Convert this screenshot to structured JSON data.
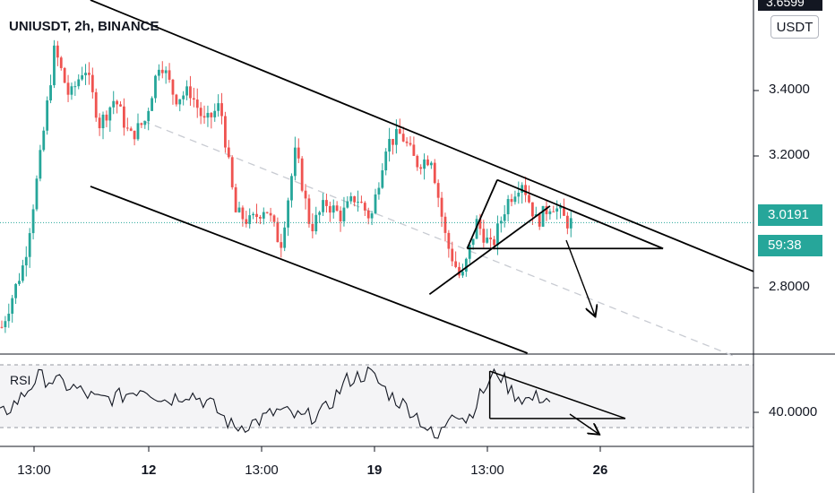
{
  "header": {
    "title": "UNIUSDT, 2h, BINANCE",
    "currency": "USDT"
  },
  "colors": {
    "up": "#26a69a",
    "down": "#ef5350",
    "price_line": "#26a69a",
    "trendline": "#000000",
    "ma_dashed": "#c8cbd2",
    "rsi_line": "#131722",
    "rsi_band_bg": "#f4f4f6"
  },
  "price_axis": {
    "ticks": [
      "3.4000",
      "3.2000",
      "2.8000"
    ],
    "top_cut_label": "3.6599",
    "last_price": "3.0191",
    "countdown": "59:38"
  },
  "rsi_panel": {
    "label": "RSI",
    "axis_label": "40.0000"
  },
  "time_axis": {
    "labels": [
      {
        "text": "13:00",
        "bold": false
      },
      {
        "text": "12",
        "bold": true
      },
      {
        "text": "13:00",
        "bold": false
      },
      {
        "text": "19",
        "bold": true
      },
      {
        "text": "13:00",
        "bold": false
      },
      {
        "text": "26",
        "bold": true
      }
    ]
  },
  "chart_data": {
    "type": "candlestick",
    "symbol": "UNIUSDT",
    "interval": "2h",
    "exchange": "BINANCE",
    "ylim": [
      2.62,
      3.7
    ],
    "yticks": [
      3.4,
      3.2,
      2.8
    ],
    "last_price": 3.0191,
    "price_path": [
      {
        "t": 0.0,
        "p": 2.7
      },
      {
        "t": 0.03,
        "p": 2.9
      },
      {
        "t": 0.05,
        "p": 3.2
      },
      {
        "t": 0.07,
        "p": 3.55
      },
      {
        "t": 0.09,
        "p": 3.4
      },
      {
        "t": 0.11,
        "p": 3.5
      },
      {
        "t": 0.13,
        "p": 3.32
      },
      {
        "t": 0.15,
        "p": 3.4
      },
      {
        "t": 0.17,
        "p": 3.28
      },
      {
        "t": 0.19,
        "p": 3.33
      },
      {
        "t": 0.21,
        "p": 3.52
      },
      {
        "t": 0.23,
        "p": 3.4
      },
      {
        "t": 0.25,
        "p": 3.42
      },
      {
        "t": 0.27,
        "p": 3.32
      },
      {
        "t": 0.29,
        "p": 3.38
      },
      {
        "t": 0.31,
        "p": 3.05
      },
      {
        "t": 0.33,
        "p": 3.02
      },
      {
        "t": 0.35,
        "p": 3.07
      },
      {
        "t": 0.37,
        "p": 2.95
      },
      {
        "t": 0.39,
        "p": 3.24
      },
      {
        "t": 0.41,
        "p": 3.0
      },
      {
        "t": 0.43,
        "p": 3.08
      },
      {
        "t": 0.45,
        "p": 3.04
      },
      {
        "t": 0.47,
        "p": 3.1
      },
      {
        "t": 0.49,
        "p": 3.03
      },
      {
        "t": 0.51,
        "p": 3.26
      },
      {
        "t": 0.53,
        "p": 3.29
      },
      {
        "t": 0.55,
        "p": 3.2
      },
      {
        "t": 0.57,
        "p": 3.22
      },
      {
        "t": 0.59,
        "p": 2.96
      },
      {
        "t": 0.61,
        "p": 2.84
      },
      {
        "t": 0.63,
        "p": 3.02
      },
      {
        "t": 0.65,
        "p": 2.94
      },
      {
        "t": 0.67,
        "p": 3.08
      },
      {
        "t": 0.69,
        "p": 3.15
      },
      {
        "t": 0.71,
        "p": 3.02
      },
      {
        "t": 0.73,
        "p": 3.08
      },
      {
        "t": 0.75,
        "p": 3.02
      },
      {
        "t": 0.76,
        "p": 3.02
      }
    ],
    "moving_average_dashed": [
      {
        "t": 0.19,
        "p": 3.33
      },
      {
        "t": 1.0,
        "p": 2.62
      }
    ],
    "drawings": [
      {
        "name": "channel-upper",
        "from": {
          "t": 0.12,
          "p": 3.7
        },
        "to": {
          "t": 1.0,
          "p": 2.87
        }
      },
      {
        "name": "channel-lower",
        "from": {
          "t": 0.12,
          "p": 3.13
        },
        "to": {
          "t": 0.7,
          "p": 2.62
        }
      },
      {
        "name": "triangle-lower-support",
        "from": {
          "t": 0.57,
          "p": 2.8
        },
        "to": {
          "t": 0.73,
          "p": 3.07
        }
      },
      {
        "name": "triangle-left-leg",
        "from": {
          "t": 0.62,
          "p": 2.94
        },
        "to": {
          "t": 0.66,
          "p": 3.15
        }
      },
      {
        "name": "triangle-upper",
        "from": {
          "t": 0.66,
          "p": 3.15
        },
        "to": {
          "t": 0.88,
          "p": 2.94
        }
      },
      {
        "name": "triangle-base",
        "from": {
          "t": 0.62,
          "p": 2.94
        },
        "to": {
          "t": 0.88,
          "p": 2.94
        }
      }
    ],
    "rsi": {
      "level_label": "40.0000",
      "path": [
        {
          "t": 0.0,
          "v": 0.35
        },
        {
          "t": 0.03,
          "v": 0.6
        },
        {
          "t": 0.05,
          "v": 0.85
        },
        {
          "t": 0.07,
          "v": 0.8
        },
        {
          "t": 0.1,
          "v": 0.7
        },
        {
          "t": 0.13,
          "v": 0.55
        },
        {
          "t": 0.16,
          "v": 0.6
        },
        {
          "t": 0.19,
          "v": 0.72
        },
        {
          "t": 0.22,
          "v": 0.55
        },
        {
          "t": 0.25,
          "v": 0.65
        },
        {
          "t": 0.28,
          "v": 0.5
        },
        {
          "t": 0.31,
          "v": 0.2
        },
        {
          "t": 0.34,
          "v": 0.28
        },
        {
          "t": 0.37,
          "v": 0.42
        },
        {
          "t": 0.4,
          "v": 0.32
        },
        {
          "t": 0.43,
          "v": 0.4
        },
        {
          "t": 0.46,
          "v": 0.8
        },
        {
          "t": 0.49,
          "v": 0.9
        },
        {
          "t": 0.52,
          "v": 0.6
        },
        {
          "t": 0.55,
          "v": 0.4
        },
        {
          "t": 0.57,
          "v": 0.15
        },
        {
          "t": 0.58,
          "v": 0.02
        },
        {
          "t": 0.6,
          "v": 0.45
        },
        {
          "t": 0.62,
          "v": 0.3
        },
        {
          "t": 0.64,
          "v": 0.65
        },
        {
          "t": 0.66,
          "v": 0.92
        },
        {
          "t": 0.68,
          "v": 0.65
        },
        {
          "t": 0.7,
          "v": 0.55
        },
        {
          "t": 0.72,
          "v": 0.6
        },
        {
          "t": 0.73,
          "v": 0.55
        }
      ],
      "drawings": [
        {
          "name": "rsi-triangle-upper",
          "from": {
            "t": 0.65,
            "v": 0.92
          },
          "to": {
            "t": 0.83,
            "v": 0.32
          }
        },
        {
          "name": "rsi-triangle-base",
          "from": {
            "t": 0.65,
            "v": 0.32
          },
          "to": {
            "t": 0.83,
            "v": 0.32
          }
        },
        {
          "name": "rsi-triangle-left",
          "from": {
            "t": 0.65,
            "v": 0.32
          },
          "to": {
            "t": 0.65,
            "v": 0.92
          }
        }
      ]
    }
  }
}
